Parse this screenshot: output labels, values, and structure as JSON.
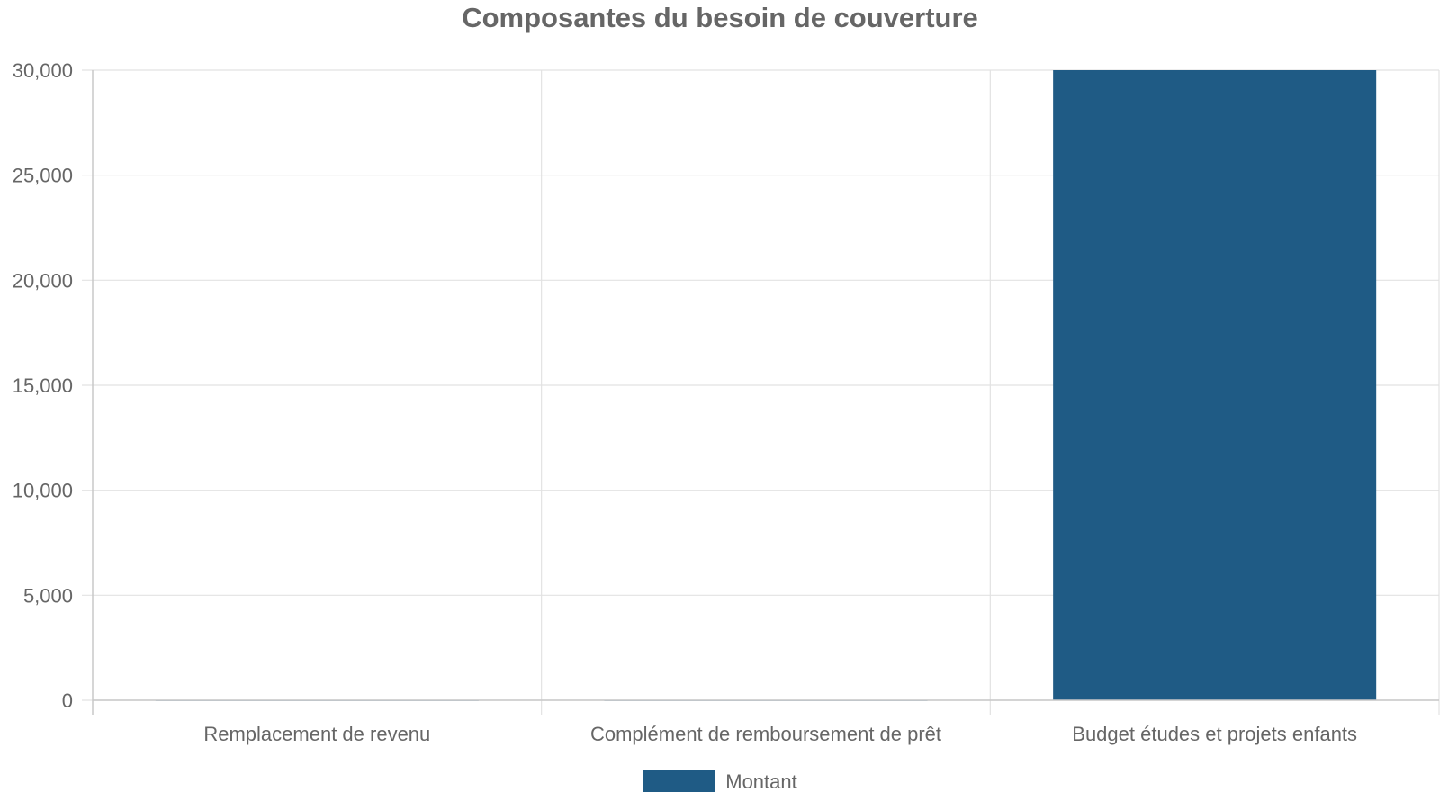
{
  "chart_data": {
    "type": "bar",
    "title": "Composantes du besoin de couverture",
    "categories": [
      "Remplacement de revenu",
      "Complément de remboursement de prêt",
      "Budget études et projets enfants"
    ],
    "series": [
      {
        "name": "Montant",
        "color": "#1f5b85",
        "values": [
          0,
          0,
          30000
        ]
      }
    ],
    "ylim": [
      0,
      30000
    ],
    "yticks": [
      0,
      5000,
      10000,
      15000,
      20000,
      25000,
      30000
    ],
    "ytick_labels": [
      "0",
      "5,000",
      "10,000",
      "15,000",
      "20,000",
      "25,000",
      "30,000"
    ],
    "xlabel": "",
    "ylabel": "",
    "grid": true,
    "legend_position": "bottom"
  }
}
